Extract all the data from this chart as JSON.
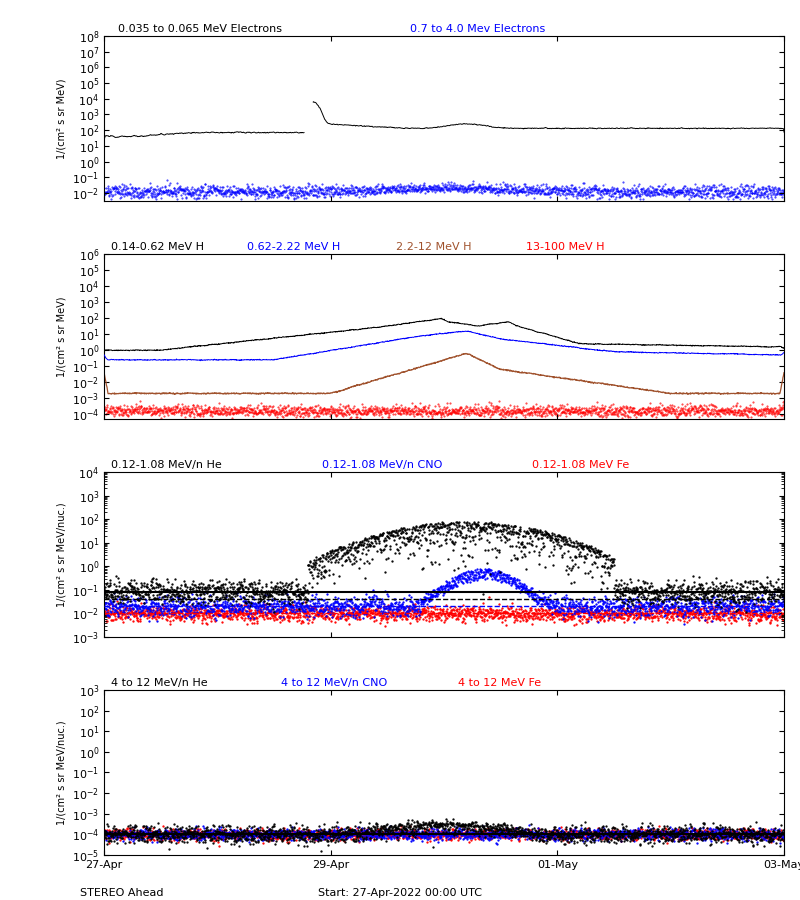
{
  "title_electrons1": "0.035 to 0.065 MeV Electrons",
  "title_electrons2": "0.7 to 4.0 Mev Electrons",
  "title_h1": "0.14-0.62 MeV H",
  "title_h2": "0.62-2.22 MeV H",
  "title_h3": "2.2-12 MeV H",
  "title_h4": "13-100 MeV H",
  "title_he1": "0.12-1.08 MeV/n He",
  "title_cno1": "0.12-1.08 MeV/n CNO",
  "title_fe1": "0.12-1.08 MeV Fe",
  "title_he2": "4 to 12 MeV/n He",
  "title_cno2": "4 to 12 MeV/n CNO",
  "title_fe2": "4 to 12 MeV Fe",
  "xlabel_left": "STEREO Ahead",
  "xlabel_right": "Start: 27-Apr-2022 00:00 UTC",
  "xtick_labels": [
    "27-Apr",
    "29-Apr",
    "01-May",
    "03-May"
  ],
  "color_black": "#000000",
  "color_blue": "#0000FF",
  "color_brown": "#A0522D",
  "color_red": "#FF0000",
  "bg_color": "#FFFFFF",
  "panel1_ylabel": "1/(cm² s sr MeV)",
  "panel2_ylabel": "1/(cm² s sr MeV)",
  "panel3_ylabel": "1/(cm² s sr MeV/nuc.)",
  "panel4_ylabel": "1/(cm² s sr MeV/nuc.)",
  "panel1_ylim": [
    0.003,
    100000000.0
  ],
  "panel2_ylim": [
    5e-05,
    1000000.0
  ],
  "panel3_ylim": [
    0.001,
    10000.0
  ],
  "panel4_ylim": [
    1e-05,
    1000.0
  ],
  "num_points": 2000
}
